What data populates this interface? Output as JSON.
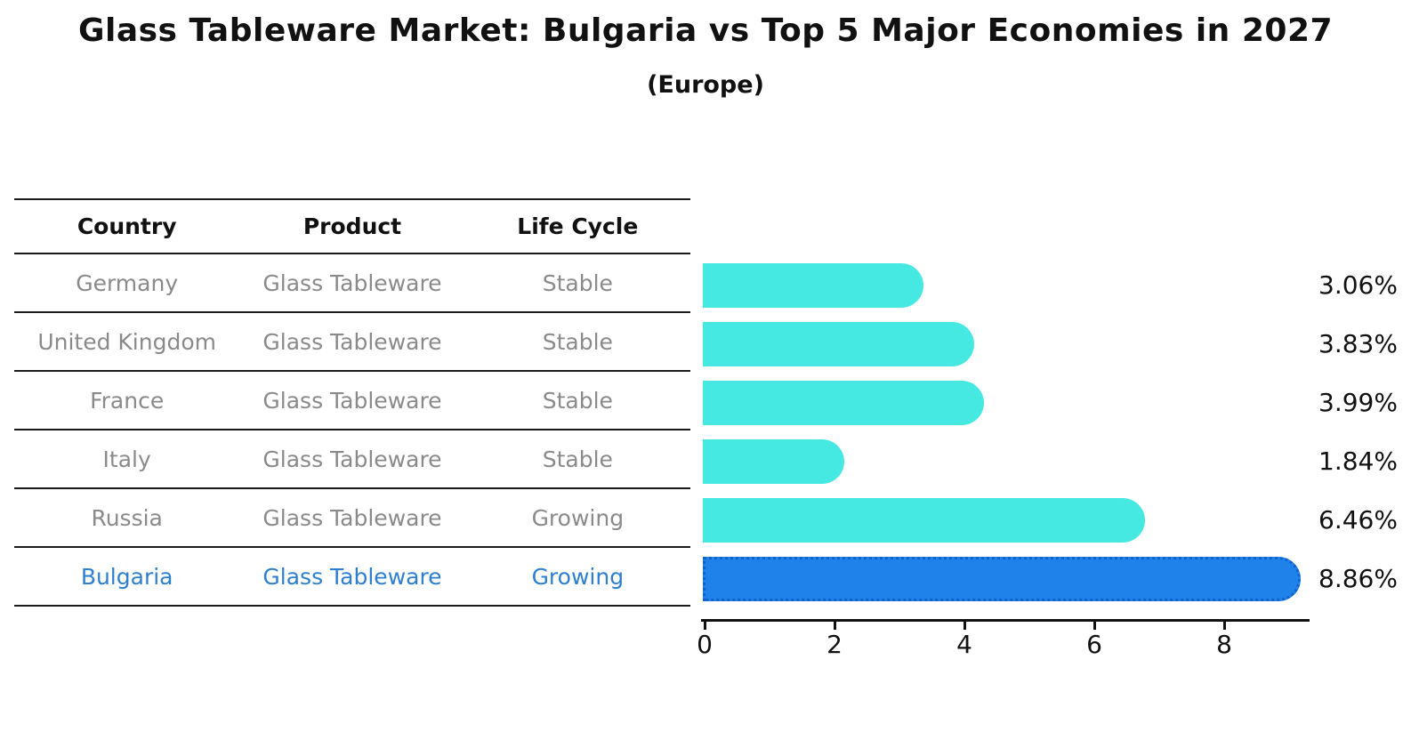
{
  "title": "Glass Tableware Market: Bulgaria vs Top 5 Major Economies in 2027",
  "subtitle": "(Europe)",
  "table": {
    "headers": [
      "Country",
      "Product",
      "Life Cycle"
    ],
    "rows": [
      {
        "country": "Germany",
        "product": "Glass Tableware",
        "life_cycle": "Stable",
        "highlight": false
      },
      {
        "country": "United Kingdom",
        "product": "Glass Tableware",
        "life_cycle": "Stable",
        "highlight": false
      },
      {
        "country": "France",
        "product": "Glass Tableware",
        "life_cycle": "Stable",
        "highlight": false
      },
      {
        "country": "Italy",
        "product": "Glass Tableware",
        "life_cycle": "Stable",
        "highlight": false
      },
      {
        "country": "Russia",
        "product": "Glass Tableware",
        "life_cycle": "Growing",
        "highlight": false
      },
      {
        "country": "Bulgaria",
        "product": "Glass Tableware",
        "life_cycle": "Growing",
        "highlight": true
      }
    ]
  },
  "chart_data": {
    "type": "bar",
    "orientation": "horizontal",
    "title": "Glass Tableware Market: Bulgaria vs Top 5 Major Economies in 2027",
    "subtitle": "(Europe)",
    "categories": [
      "Germany",
      "United Kingdom",
      "France",
      "Italy",
      "Russia",
      "Bulgaria"
    ],
    "values": [
      3.06,
      3.83,
      3.99,
      1.84,
      6.46,
      8.86
    ],
    "value_labels": [
      "3.06%",
      "3.83%",
      "3.99%",
      "1.84%",
      "6.46%",
      "8.86%"
    ],
    "xlabel": "",
    "ylabel": "",
    "xlim": [
      0,
      9.3
    ],
    "x_ticks": [
      0,
      2,
      4,
      6,
      8
    ],
    "grid": false,
    "legend": false,
    "highlight_index": 5,
    "colors": {
      "bar_default": "#46e8e2",
      "bar_highlight": "#1e82ea",
      "bar_highlight_border": "#1261c9",
      "highlight_text": "#2e7fd0",
      "row_text": "#8a8a8a",
      "axis": "#111111"
    }
  }
}
